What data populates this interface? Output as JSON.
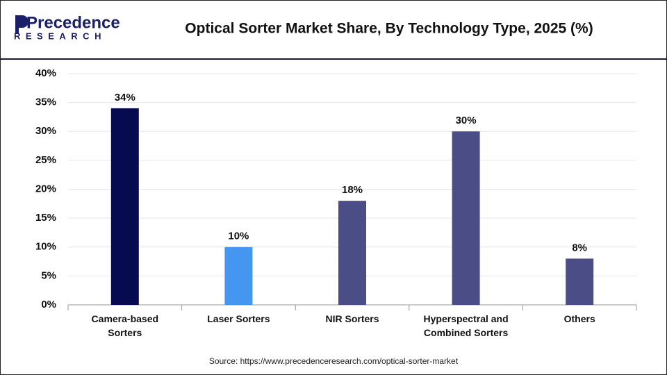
{
  "logo": {
    "name": "Precedence",
    "sub": "RESEARCH"
  },
  "chart_data": {
    "type": "bar",
    "title": "Optical Sorter Market Share, By Technology Type, 2025 (%)",
    "categories": [
      "Camera-based Sorters",
      "Laser Sorters",
      "NIR Sorters",
      "Hyperspectral and Combined Sorters",
      "Others"
    ],
    "values": [
      34,
      10,
      18,
      30,
      8
    ],
    "value_labels": [
      "34%",
      "10%",
      "18%",
      "30%",
      "8%"
    ],
    "colors": [
      "#060a4e",
      "#4596f0",
      "#4a4d86",
      "#4a4d86",
      "#4a4d86"
    ],
    "ylim": [
      0,
      40
    ],
    "yticks": [
      {
        "value": 0,
        "label": "0%"
      },
      {
        "value": 5,
        "label": "5%"
      },
      {
        "value": 10,
        "label": "10%"
      },
      {
        "value": 15,
        "label": "15%"
      },
      {
        "value": 20,
        "label": "20%"
      },
      {
        "value": 25,
        "label": "25%"
      },
      {
        "value": 30,
        "label": "30%"
      },
      {
        "value": 35,
        "label": "35%"
      },
      {
        "value": 40,
        "label": "40%"
      }
    ],
    "grid": true,
    "source": "Source: https://www.precedenceresearch.com/optical-sorter-market"
  }
}
